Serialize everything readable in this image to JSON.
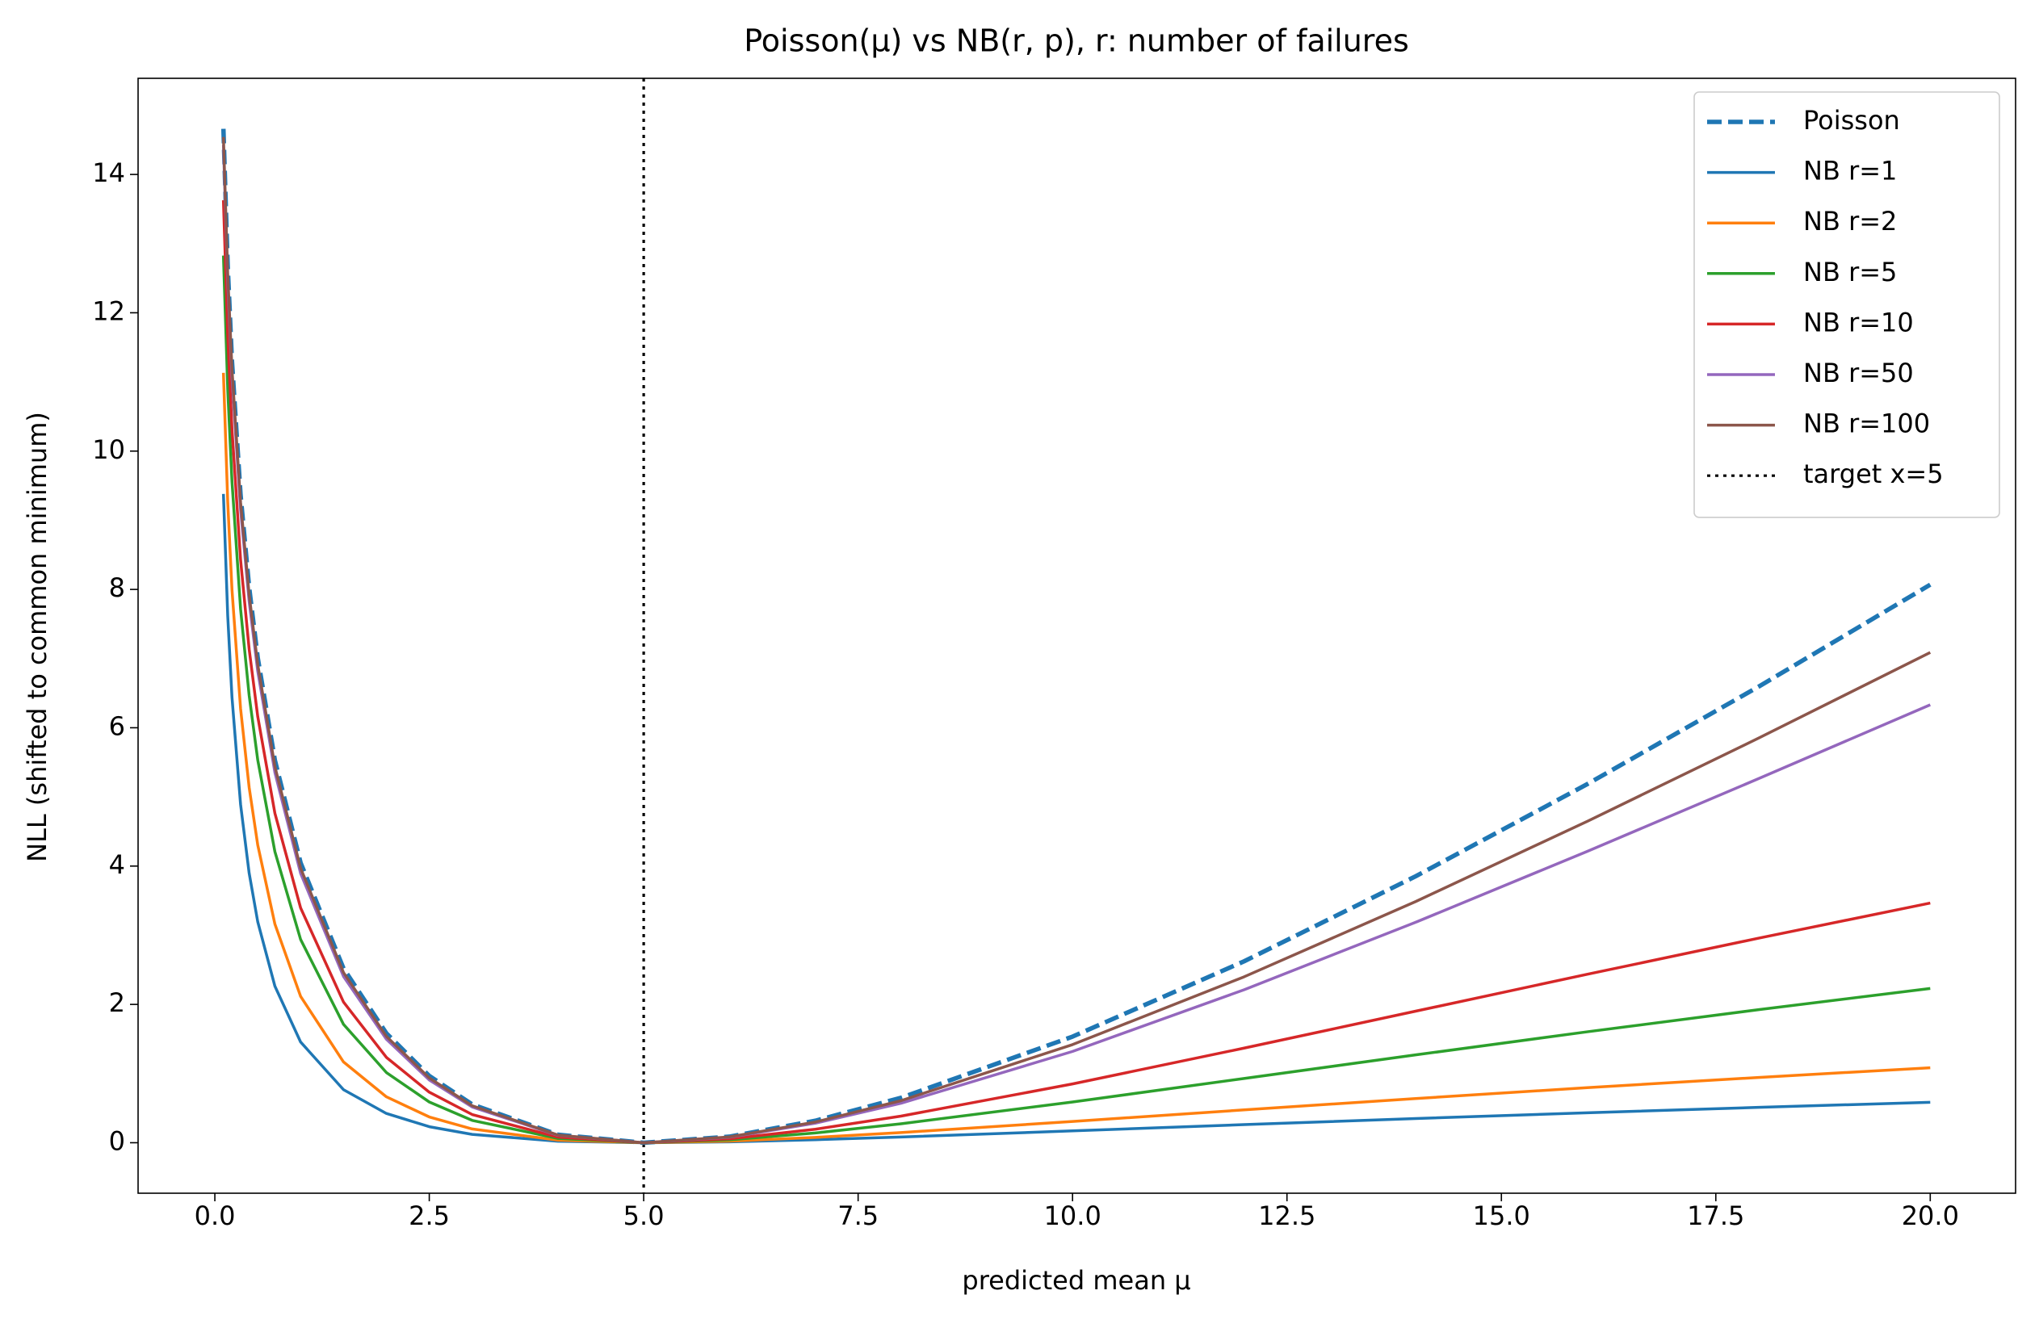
{
  "chart_data": {
    "type": "line",
    "title": "Poisson(μ) vs NB(r, p), r: number of failures",
    "x_label": "predicted mean μ",
    "y_label": "NLL (shifted to common minimum)",
    "x": [
      0.1,
      0.15,
      0.2,
      0.3,
      0.4,
      0.5,
      0.7,
      1,
      1.5,
      2,
      2.5,
      3,
      4,
      5,
      6,
      7,
      8,
      10,
      12,
      14,
      16,
      18,
      20
    ],
    "series": [
      {
        "name": "Poisson",
        "color": "#1f77b4",
        "style": "dashed",
        "values": [
          14.66,
          12.683,
          11.294,
          9.367,
          8.029,
          7.013,
          5.531,
          4.047,
          2.52,
          1.582,
          0.966,
          0.554,
          0.116,
          0,
          0.088,
          0.318,
          0.65,
          1.534,
          2.623,
          3.852,
          5.184,
          6.595,
          8.069
        ]
      },
      {
        "name": "NB r=1",
        "color": "#1f77b4",
        "style": "solid",
        "values": [
          9.381,
          7.621,
          6.438,
          4.891,
          3.897,
          3.195,
          2.264,
          1.456,
          0.767,
          0.423,
          0.232,
          0.121,
          0.022,
          0,
          0.013,
          0.044,
          0.083,
          0.171,
          0.262,
          0.35,
          0.433,
          0.511,
          0.585
        ]
      },
      {
        "name": "NB r=2",
        "color": "#ff7f0e",
        "style": "solid",
        "values": [
          11.132,
          9.27,
          7.992,
          6.276,
          5.136,
          4.306,
          3.162,
          2.116,
          1.168,
          0.664,
          0.373,
          0.199,
          0.037,
          0,
          0.023,
          0.077,
          0.147,
          0.307,
          0.475,
          0.639,
          0.796,
          0.944,
          1.084
        ]
      },
      {
        "name": "NB r=5",
        "color": "#2ca02c",
        "style": "solid",
        "values": [
          12.827,
          10.897,
          9.555,
          7.718,
          6.467,
          5.535,
          4.209,
          2.939,
          1.712,
          1.015,
          0.589,
          0.323,
          0.062,
          0,
          0.042,
          0.141,
          0.274,
          0.589,
          0.929,
          1.27,
          1.604,
          1.924,
          2.231
        ]
      },
      {
        "name": "NB r=10",
        "color": "#d62728",
        "style": "solid",
        "values": [
          13.627,
          11.674,
          10.31,
          8.429,
          7.135,
          6.163,
          4.764,
          3.395,
          2.034,
          1.234,
          0.731,
          0.408,
          0.081,
          0,
          0.057,
          0.195,
          0.385,
          0.85,
          1.368,
          1.902,
          2.435,
          2.958,
          3.466
        ]
      },
      {
        "name": "NB r=50",
        "color": "#9467bd",
        "style": "solid",
        "values": [
          14.428,
          12.456,
          11.072,
          9.154,
          7.825,
          6.818,
          5.353,
          3.894,
          2.404,
          1.497,
          0.907,
          0.517,
          0.107,
          0,
          0.079,
          0.282,
          0.571,
          1.32,
          2.212,
          3.187,
          4.212,
          5.265,
          6.332
        ]
      },
      {
        "name": "NB r=100",
        "color": "#8c564b",
        "style": "solid",
        "values": [
          14.542,
          12.567,
          11.181,
          9.259,
          7.925,
          6.914,
          5.44,
          3.969,
          2.46,
          1.538,
          0.936,
          0.535,
          0.111,
          0,
          0.084,
          0.299,
          0.608,
          1.419,
          2.399,
          3.487,
          4.646,
          5.851,
          7.089
        ]
      }
    ],
    "vline": {
      "name": "target x=5",
      "x": 5,
      "color": "#000000",
      "style": "dotted"
    },
    "xlim": [
      -0.895,
      20.995
    ],
    "ylim": [
      -0.73,
      15.39
    ],
    "xticks": [
      {
        "value": 0,
        "label": "0.0"
      },
      2.5,
      {
        "value": 5,
        "label": "5.0"
      },
      7.5,
      {
        "value": 10,
        "label": "10.0"
      },
      12.5,
      {
        "value": 15,
        "label": "15.0"
      },
      17.5,
      {
        "value": 20,
        "label": "20.0"
      }
    ],
    "yticks": [
      0,
      2,
      4,
      6,
      8,
      10,
      12,
      14
    ],
    "grid": false,
    "legend": "upper right"
  }
}
